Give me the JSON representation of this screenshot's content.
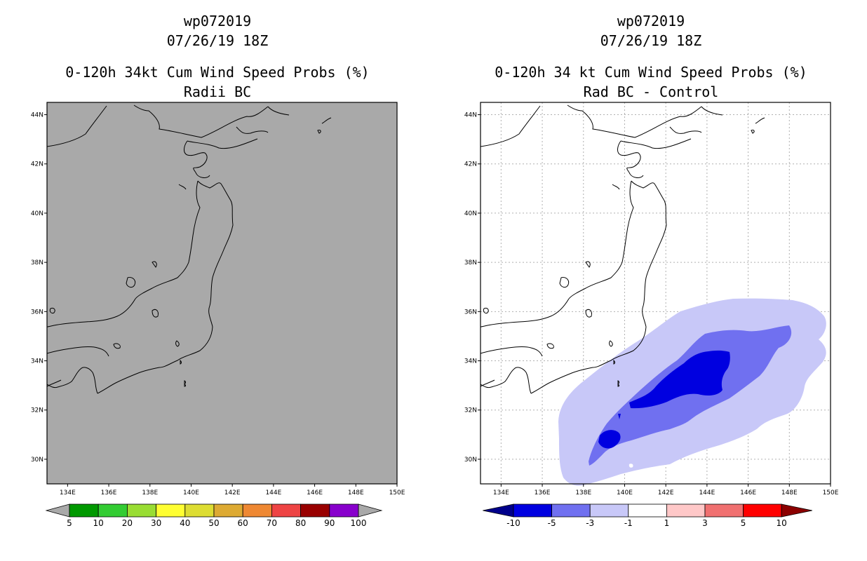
{
  "left_panel": {
    "id_line": "wp072019",
    "date_line": "07/26/19 18Z",
    "title_line": "0-120h 34kt Cum Wind Speed Probs (%)",
    "subtitle": "Radii BC",
    "background_color": "#a9a9a9",
    "lat_labels": [
      "44N",
      "42N",
      "40N",
      "38N",
      "36N",
      "34N",
      "32N",
      "30N"
    ],
    "lon_labels": [
      "134E",
      "136E",
      "138E",
      "140E",
      "142E",
      "144E",
      "146E",
      "148E",
      "150E"
    ],
    "colorbar": {
      "colors": [
        "#009900",
        "#33cc33",
        "#99dd33",
        "#ffff33",
        "#dddd33",
        "#ddaa33",
        "#ee8833",
        "#ee4444",
        "#990000",
        "#8800cc"
      ],
      "labels": [
        "5",
        "10",
        "20",
        "30",
        "40",
        "50",
        "60",
        "70",
        "80",
        "90",
        "100"
      ],
      "end_color": "#a9a9a9"
    }
  },
  "right_panel": {
    "id_line": "wp072019",
    "date_line": "07/26/19 18Z",
    "title_line": "0-120h 34 kt Cum Wind Speed Probs (%)",
    "subtitle": "Rad BC - Control",
    "background_color": "#ffffff",
    "lat_labels": [
      "44N",
      "42N",
      "40N",
      "38N",
      "36N",
      "34N",
      "32N",
      "30N"
    ],
    "lon_labels": [
      "134E",
      "136E",
      "138E",
      "140E",
      "142E",
      "144E",
      "146E",
      "148E",
      "150E"
    ],
    "contour_colors": {
      "light": "#c8c8f8",
      "medium": "#7070f0",
      "dark": "#0000e0"
    },
    "colorbar": {
      "colors": [
        "#0000e0",
        "#7070f0",
        "#c8c8f8",
        "#ffffff",
        "#ffc8c8",
        "#f07070",
        "#ff0000"
      ],
      "labels": [
        "-10",
        "-5",
        "-3",
        "-1",
        "1",
        "3",
        "5",
        "10"
      ],
      "left_end_color": "#00008b",
      "right_end_color": "#8b0000"
    }
  }
}
